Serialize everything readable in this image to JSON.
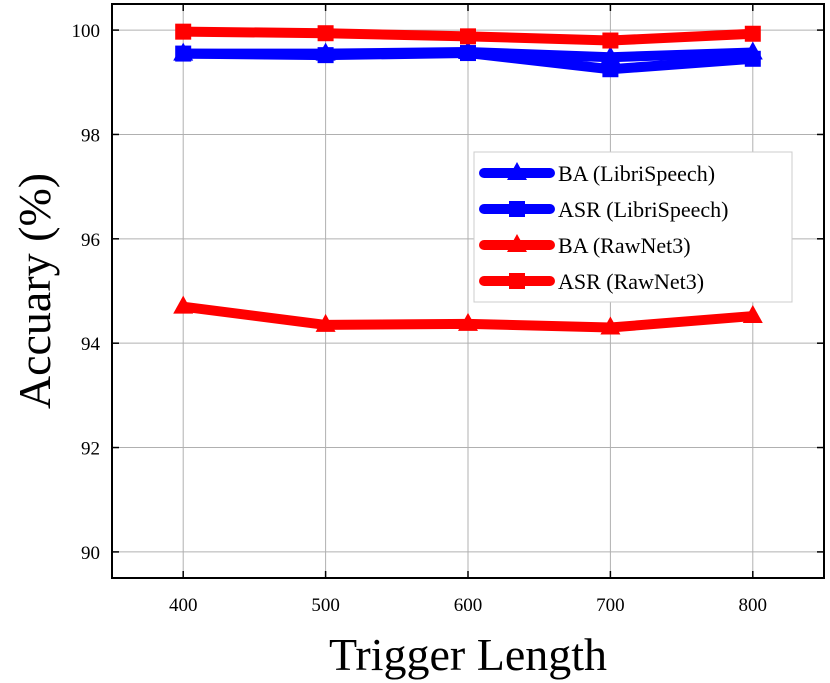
{
  "chart_data": {
    "type": "line",
    "title": "",
    "xlabel": "Trigger Length",
    "ylabel": "Accuary (%)",
    "x": [
      400,
      500,
      600,
      700,
      800
    ],
    "xlim": [
      350,
      850
    ],
    "ylim": [
      89.5,
      100.5
    ],
    "xticks": [
      400,
      500,
      600,
      700,
      800
    ],
    "yticks": [
      90,
      92,
      94,
      96,
      98,
      100
    ],
    "grid": true,
    "legend_position": "right, middle-upper",
    "series": [
      {
        "name": "BA (LibriSpeech)",
        "color": "#0000ff",
        "marker": "triangle",
        "values": [
          99.55,
          99.55,
          99.58,
          99.48,
          99.57
        ]
      },
      {
        "name": "ASR (LibriSpeech)",
        "color": "#0000ff",
        "marker": "square",
        "values": [
          99.55,
          99.52,
          99.56,
          99.25,
          99.45
        ]
      },
      {
        "name": "BA (RawNet3)",
        "color": "#ff0000",
        "marker": "triangle",
        "values": [
          94.7,
          94.35,
          94.37,
          94.3,
          94.52
        ]
      },
      {
        "name": "ASR (RawNet3)",
        "color": "#ff0000",
        "marker": "square",
        "values": [
          99.97,
          99.94,
          99.88,
          99.8,
          99.93
        ]
      }
    ]
  }
}
